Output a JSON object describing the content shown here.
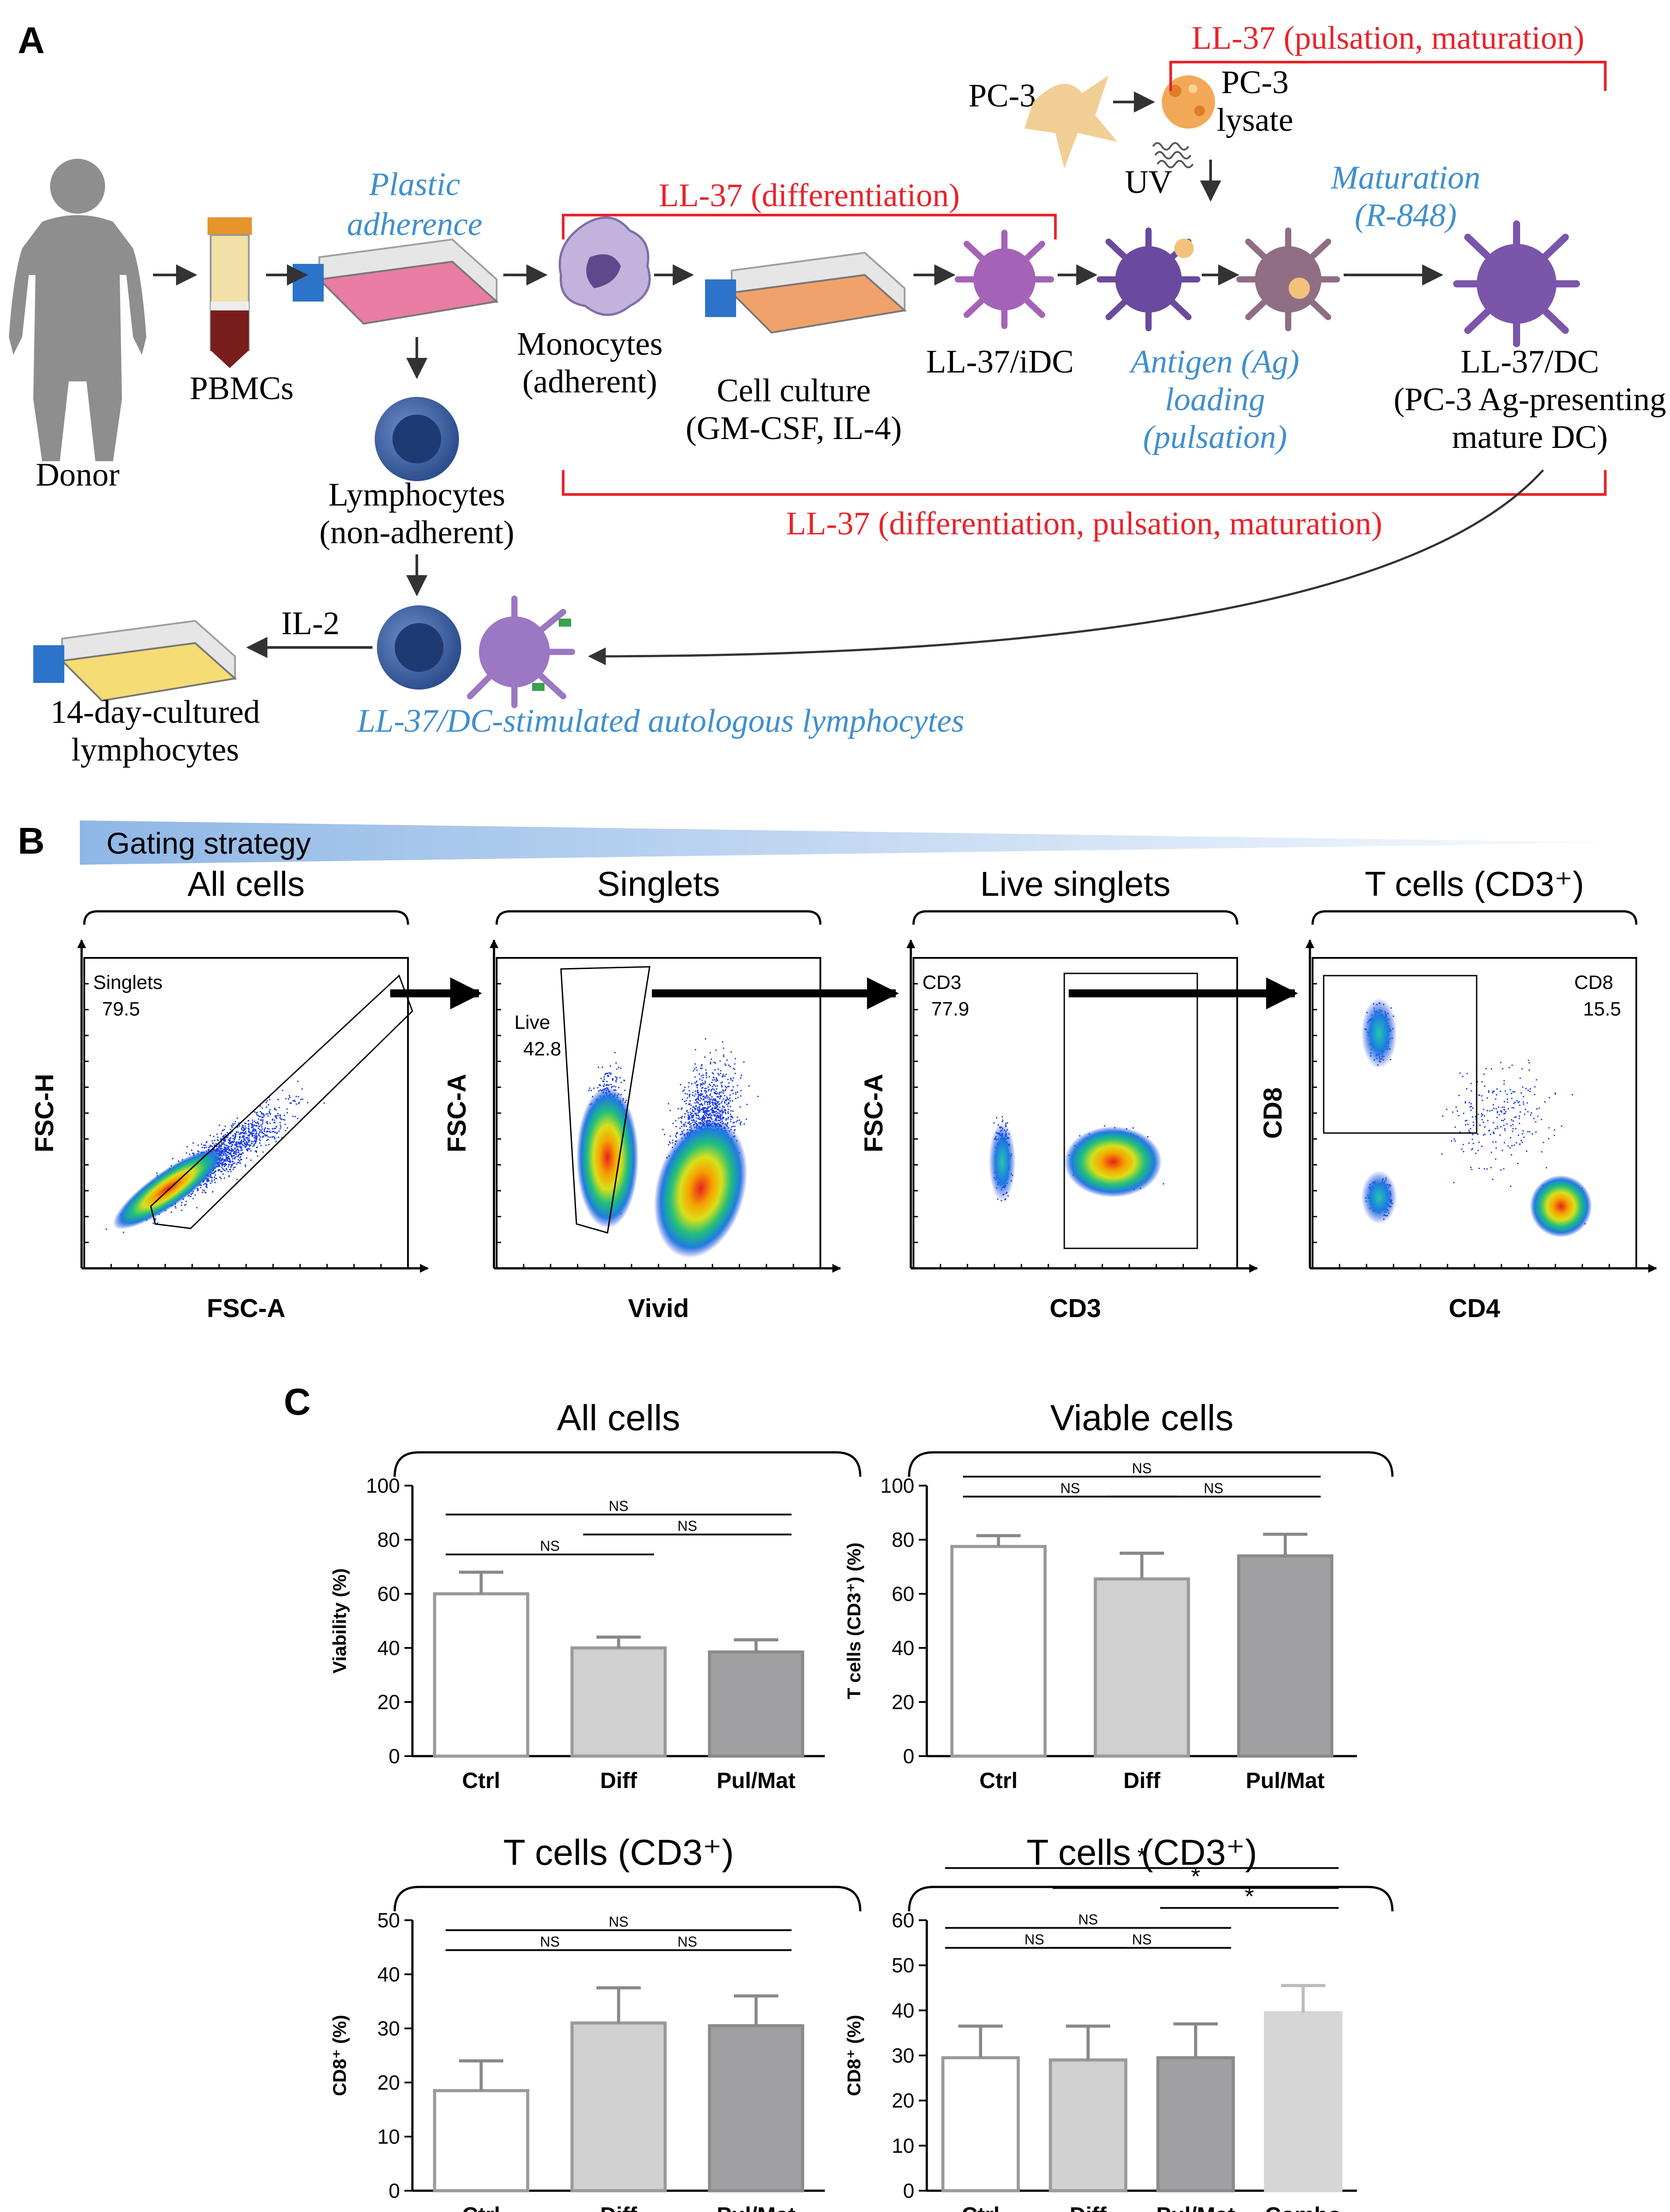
{
  "panels": {
    "a": "A",
    "b": "B",
    "c": "C"
  },
  "panelA": {
    "pc3": "PC-3",
    "pc3_lysate_1": "PC-3",
    "pc3_lysate_2": "lysate",
    "uv": "UV",
    "ll37_pm": "LL-37 (pulsation, maturation)",
    "ll37_diff": "LL-37 (differentiation)",
    "ll37_all": "LL-37 (differentiation, pulsation, maturation)",
    "plastic_1": "Plastic",
    "plastic_2": "adherence",
    "maturation_1": "Maturation",
    "maturation_2": "(R-848)",
    "pbmcs": "PBMCs",
    "donor": "Donor",
    "mono_1": "Monocytes",
    "mono_2": "(adherent)",
    "culture_1": "Cell culture",
    "culture_2": "(GM-CSF, IL-4)",
    "idc": "LL-37/iDC",
    "ag_1": "Antigen (Ag)",
    "ag_2": "loading",
    "ag_3": "(pulsation)",
    "dc_1": "LL-37/DC",
    "dc_2": "(PC-3 Ag-presenting",
    "dc_3": "mature DC)",
    "lymph_1": "Lymphocytes",
    "lymph_2": "(non-adherent)",
    "il2": "IL-2",
    "cult14_1": "14-day-cultured",
    "cult14_2": "lymphocytes",
    "stim": "LL-37/DC-stimulated autologous lymphocytes",
    "colors": {
      "red": "#e8242a",
      "blue": "#3f8fd0"
    }
  },
  "panelB": {
    "gating": "Gating strategy",
    "plots": [
      {
        "title": "All cells",
        "ylabel": "FSC-H",
        "xlabel": "FSC-A",
        "gate": "Singlets",
        "value": "79.5"
      },
      {
        "title": "Singlets",
        "ylabel": "FSC-A",
        "xlabel": "Vivid",
        "gate": "Live",
        "value": "42.8"
      },
      {
        "title": "Live singlets",
        "ylabel": "FSC-A",
        "xlabel": "CD3",
        "gate": "CD3",
        "value": "77.9"
      },
      {
        "title": "T cells (CD3⁺)",
        "ylabel": "CD8",
        "xlabel": "CD4",
        "gate": "CD8",
        "value": "15.5"
      }
    ]
  },
  "chart_data": [
    {
      "type": "bar",
      "title": "All cells",
      "ylabel": "Viability (%)",
      "ylim": [
        0,
        100
      ],
      "yticks": [
        0,
        20,
        40,
        60,
        80,
        100
      ],
      "categories": [
        "Ctrl",
        "Diff",
        "Pul/Mat"
      ],
      "values": [
        60,
        40,
        38.5
      ],
      "errors": [
        8,
        4,
        4.5
      ],
      "fills": [
        "#ffffff",
        "#d0d0d0",
        "#a0a0a2"
      ],
      "strokes": [
        "#9a9a9a",
        "#9a9a9a",
        "#8a8a8a"
      ],
      "significance": [
        {
          "from": 0,
          "to": 1,
          "label": "NS",
          "level": 0
        },
        {
          "from": 1,
          "to": 2,
          "label": "NS",
          "level": 1
        },
        {
          "from": 0,
          "to": 2,
          "label": "NS",
          "level": 2
        }
      ]
    },
    {
      "type": "bar",
      "title": "Viable cells",
      "ylabel": "T cells (CD3⁺) (%)",
      "ylim": [
        0,
        100
      ],
      "yticks": [
        0,
        20,
        40,
        60,
        80,
        100
      ],
      "categories": [
        "Ctrl",
        "Diff",
        "Pul/Mat"
      ],
      "values": [
        77.5,
        65.5,
        74
      ],
      "errors": [
        4,
        9.5,
        8
      ],
      "fills": [
        "#ffffff",
        "#d0d0d0",
        "#a0a0a2"
      ],
      "strokes": [
        "#9a9a9a",
        "#9a9a9a",
        "#8a8a8a"
      ],
      "significance": [
        {
          "from": 0,
          "to": 1,
          "label": "NS",
          "level": 1
        },
        {
          "from": 1,
          "to": 2,
          "label": "NS",
          "level": 1
        },
        {
          "from": 0,
          "to": 2,
          "label": "NS",
          "level": 2
        }
      ]
    },
    {
      "type": "bar",
      "title": "T cells (CD3⁺)",
      "ylabel": "CD8⁺ (%)",
      "ylim": [
        0,
        50
      ],
      "yticks": [
        0,
        10,
        20,
        30,
        40,
        50
      ],
      "categories": [
        "Ctrl",
        "Diff",
        "Pul/Mat"
      ],
      "values": [
        18.5,
        31,
        30.5
      ],
      "errors": [
        5.5,
        6.5,
        5.5
      ],
      "fills": [
        "#ffffff",
        "#d0d0d0",
        "#a0a0a2"
      ],
      "strokes": [
        "#9a9a9a",
        "#9a9a9a",
        "#8a8a8a"
      ],
      "significance": [
        {
          "from": 0,
          "to": 1,
          "label": "NS",
          "level": 1
        },
        {
          "from": 1,
          "to": 2,
          "label": "NS",
          "level": 1
        },
        {
          "from": 0,
          "to": 2,
          "label": "NS",
          "level": 2
        }
      ]
    },
    {
      "type": "bar",
      "title": "T cells (CD3⁺)",
      "ylabel": "CD8⁺ (%)",
      "ylim": [
        0,
        60
      ],
      "yticks": [
        0,
        10,
        20,
        30,
        40,
        50,
        60
      ],
      "categories": [
        "Ctrl",
        "Diff",
        "Pul/Mat",
        "Combo"
      ],
      "values": [
        29.5,
        29,
        29.5,
        39.5
      ],
      "errors": [
        7,
        7.5,
        7.5,
        6
      ],
      "fills": [
        "#ffffff",
        "#d0d0d0",
        "#a0a0a2",
        "#d6d6d6"
      ],
      "strokes": [
        "#9a9a9a",
        "#9a9a9a",
        "#8a8a8a",
        "#d6d6d6"
      ],
      "significance": [
        {
          "from": 0,
          "to": 1,
          "label": "NS",
          "level": 1
        },
        {
          "from": 1,
          "to": 2,
          "label": "NS",
          "level": 1
        },
        {
          "from": 0,
          "to": 2,
          "label": "NS",
          "level": 2
        },
        {
          "from": 2,
          "to": 3,
          "label": "*",
          "level": 3
        },
        {
          "from": 1,
          "to": 3,
          "label": "*",
          "level": 4
        },
        {
          "from": 0,
          "to": 3,
          "label": "*",
          "level": 5
        }
      ]
    }
  ]
}
